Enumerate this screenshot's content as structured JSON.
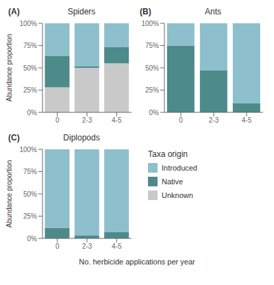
{
  "chart_data": [
    {
      "type": "bar",
      "stacked": true,
      "panel_label": "(A)",
      "title": "Spiders",
      "ylabel": "Abundance proportion",
      "categories": [
        "0",
        "2-3",
        "4-5"
      ],
      "series": [
        {
          "name": "Unknown",
          "color": "#C9C9C9",
          "values": [
            0.28,
            0.5,
            0.55
          ]
        },
        {
          "name": "Native",
          "color": "#4D8A8A",
          "values": [
            0.35,
            0.02,
            0.18
          ]
        },
        {
          "name": "Introduced",
          "color": "#8DBFCC",
          "values": [
            0.37,
            0.48,
            0.27
          ]
        }
      ],
      "ylim": [
        0,
        1.0
      ],
      "yticks": [
        {
          "value": 0,
          "label": "0%"
        },
        {
          "value": 0.25,
          "label": "25%"
        },
        {
          "value": 0.5,
          "label": "50%"
        },
        {
          "value": 0.75,
          "label": "75%"
        },
        {
          "value": 1.0,
          "label": "100%"
        }
      ],
      "grid": false
    },
    {
      "type": "bar",
      "stacked": true,
      "panel_label": "(B)",
      "title": "Ants",
      "categories": [
        "0",
        "2-3",
        "4-5"
      ],
      "series": [
        {
          "name": "Unknown",
          "color": "#C9C9C9",
          "values": [
            0.0,
            0.0,
            0.0
          ]
        },
        {
          "name": "Native",
          "color": "#4D8A8A",
          "values": [
            0.75,
            0.47,
            0.1
          ]
        },
        {
          "name": "Introduced",
          "color": "#8DBFCC",
          "values": [
            0.25,
            0.53,
            0.9
          ]
        }
      ],
      "ylim": [
        0,
        1.0
      ],
      "yticks": [
        {
          "value": 0,
          "label": "0%"
        },
        {
          "value": 0.25,
          "label": "25%"
        },
        {
          "value": 0.5,
          "label": "50%"
        },
        {
          "value": 0.75,
          "label": "75%"
        },
        {
          "value": 1.0,
          "label": "100%"
        }
      ],
      "grid": false
    },
    {
      "type": "bar",
      "stacked": true,
      "panel_label": "(C)",
      "title": "Diplopods",
      "ylabel": "Abundance proportion",
      "categories": [
        "0",
        "2-3",
        "4-5"
      ],
      "series": [
        {
          "name": "Unknown",
          "color": "#C9C9C9",
          "values": [
            0.0,
            0.0,
            0.0
          ]
        },
        {
          "name": "Native",
          "color": "#4D8A8A",
          "values": [
            0.12,
            0.03,
            0.07
          ]
        },
        {
          "name": "Introduced",
          "color": "#8DBFCC",
          "values": [
            0.88,
            0.97,
            0.93
          ]
        }
      ],
      "ylim": [
        0,
        1.0
      ],
      "yticks": [
        {
          "value": 0,
          "label": "0%"
        },
        {
          "value": 0.25,
          "label": "25%"
        },
        {
          "value": 0.5,
          "label": "50%"
        },
        {
          "value": 0.75,
          "label": "75%"
        },
        {
          "value": 1.0,
          "label": "100%"
        }
      ],
      "grid": false
    }
  ],
  "xlabel": "No. herbicide applications per year",
  "legend_title": "Taxa origin"
}
